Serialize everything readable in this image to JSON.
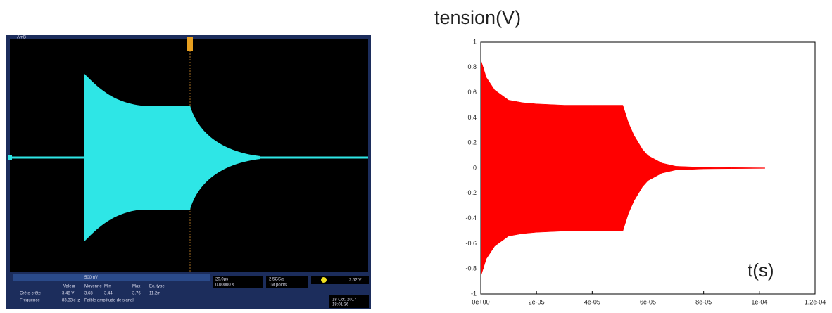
{
  "chart_data": {
    "type": "envelope",
    "title": "tension(V)",
    "x_label": "t(s)",
    "x": [
      0,
      2e-06,
      5e-06,
      1e-05,
      1.5e-05,
      2e-05,
      3e-05,
      4e-05,
      5.1e-05,
      5.3e-05,
      5.5e-05,
      5.8e-05,
      6e-05,
      6.5e-05,
      7e-05,
      8e-05,
      9e-05,
      0.000102
    ],
    "series": [
      {
        "color": "#ff0000",
        "values": [
          0.86,
          0.72,
          0.62,
          0.54,
          0.52,
          0.51,
          0.5,
          0.5,
          0.5,
          0.36,
          0.26,
          0.15,
          0.1,
          0.04,
          0.015,
          0.006,
          0.004,
          0.002
        ]
      },
      {
        "color": "#ff0000",
        "values": [
          -0.86,
          -0.72,
          -0.62,
          -0.54,
          -0.52,
          -0.51,
          -0.5,
          -0.5,
          -0.5,
          -0.36,
          -0.26,
          -0.15,
          -0.1,
          -0.04,
          -0.015,
          -0.006,
          -0.004,
          -0.002
        ]
      }
    ],
    "xlim": [
      0,
      0.00012
    ],
    "xticks": [
      {
        "value": 0,
        "label": "0e+00"
      },
      {
        "value": 2e-05,
        "label": "2e-05"
      },
      {
        "value": 4e-05,
        "label": "4e-05"
      },
      {
        "value": 6e-05,
        "label": "6e-05"
      },
      {
        "value": 8e-05,
        "label": "8e-05"
      },
      {
        "value": 0.0001,
        "label": "1e-04"
      },
      {
        "value": 0.00012,
        "label": "1.2e-04"
      }
    ],
    "ylim": [
      -1,
      1
    ],
    "yticks": [
      -1,
      -0.8,
      -0.6,
      -0.4,
      -0.2,
      0,
      0.2,
      0.4,
      0.6,
      0.8,
      1
    ],
    "grid": false
  },
  "oscilloscope": {
    "channel": "AmB",
    "scale": "500mV",
    "table_header": [
      "Valeur",
      "Moyenne",
      "Min",
      "Max",
      "Ec. type"
    ],
    "row1": [
      "Crête-crête",
      "3.48 V",
      "3.68",
      "3.44",
      "3.76",
      "11.2m"
    ],
    "row2": [
      "Fréquence",
      "83.33kHz",
      "Faible amplitude de signal"
    ],
    "timebase": "20.0µs",
    "delay": "0.00000 s",
    "sample_rate": "2.5GS/s",
    "points": "1M points",
    "trigger": "2.52 V",
    "date": "18 Oct. 2017",
    "time": "18:01:36"
  }
}
